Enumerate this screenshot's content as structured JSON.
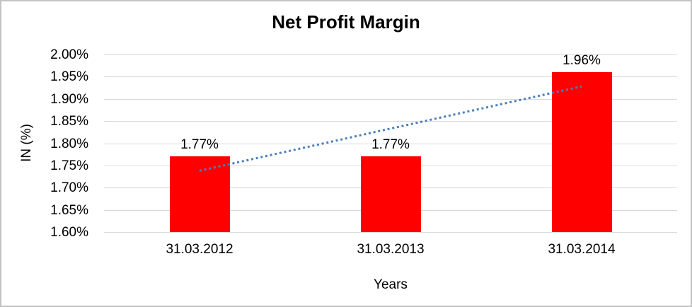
{
  "chart_data": {
    "type": "bar",
    "title": "Net Profit Margin",
    "xlabel": "Years",
    "ylabel": "IN (%)",
    "categories": [
      "31.03.2012",
      "31.03.2013",
      "31.03.2014"
    ],
    "values": [
      1.77,
      1.77,
      1.96
    ],
    "data_labels": [
      "1.77%",
      "1.77%",
      "1.96%"
    ],
    "ylim": [
      1.6,
      2.0
    ],
    "ytick_step": 0.05,
    "yticks": [
      "2.00%",
      "1.95%",
      "1.90%",
      "1.85%",
      "1.80%",
      "1.75%",
      "1.70%",
      "1.65%",
      "1.60%"
    ],
    "grid": true,
    "legend": "none",
    "bar_color": "#ff0000",
    "gridline_color": "#d9d9d9",
    "trendline": {
      "type": "linear",
      "style": "dotted",
      "color": "#4a7ebb",
      "start_value": 1.738,
      "end_value": 1.928
    }
  }
}
